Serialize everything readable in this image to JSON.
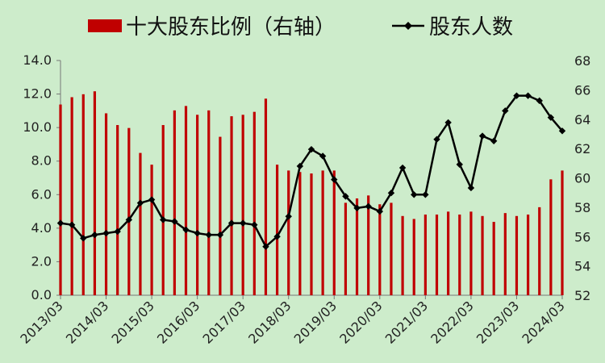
{
  "chart_data": {
    "type": "bar+line",
    "title": "",
    "legend": {
      "position": "top",
      "items": [
        {
          "label": "十大股东比例（右轴）",
          "marker": "bar",
          "color": "#c00000"
        },
        {
          "label": "股东人数",
          "marker": "line-diamond",
          "color": "#000000"
        }
      ]
    },
    "x_tick_labels": [
      "2013/03",
      "2014/03",
      "2015/03",
      "2016/03",
      "2017/03",
      "2018/03",
      "2019/03",
      "2020/03",
      "2021/03",
      "2022/03",
      "2023/03",
      "2024/03"
    ],
    "left_axis": {
      "ylim": [
        0,
        14
      ],
      "ticks": [
        "0.0",
        "2.0",
        "4.0",
        "6.0",
        "8.0",
        "10.0",
        "12.0",
        "14.0"
      ]
    },
    "right_axis": {
      "ylim": [
        52,
        68
      ],
      "ticks": [
        "52",
        "54",
        "56",
        "58",
        "60",
        "62",
        "64",
        "66",
        "68"
      ]
    },
    "quarters": [
      "2013Q1",
      "2013Q2",
      "2013Q3",
      "2013Q4",
      "2014Q1",
      "2014Q2",
      "2014Q3",
      "2014Q4",
      "2015Q1",
      "2015Q2",
      "2015Q3",
      "2015Q4",
      "2016Q1",
      "2016Q2",
      "2016Q3",
      "2016Q4",
      "2017Q1",
      "2017Q2",
      "2017Q3",
      "2017Q4",
      "2018Q1",
      "2018Q2",
      "2018Q3",
      "2018Q4",
      "2019Q1",
      "2019Q2",
      "2019Q3",
      "2019Q4",
      "2020Q1",
      "2020Q2",
      "2020Q3",
      "2020Q4",
      "2021Q1",
      "2021Q2",
      "2021Q3",
      "2021Q4",
      "2022Q1",
      "2022Q2",
      "2022Q3",
      "2022Q4",
      "2023Q1",
      "2023Q2",
      "2023Q3",
      "2023Q4",
      "2024Q1"
    ],
    "series": [
      {
        "name": "十大股东比例（右轴）",
        "type": "bar",
        "axis": "right",
        "color": "#c00000",
        "values": [
          65.0,
          65.5,
          65.7,
          65.9,
          64.4,
          63.6,
          63.4,
          61.7,
          60.9,
          63.6,
          64.6,
          64.9,
          64.3,
          64.6,
          62.8,
          64.2,
          64.3,
          64.5,
          65.4,
          60.9,
          60.5,
          60.4,
          60.3,
          60.5,
          60.5,
          58.3,
          58.6,
          58.8,
          58.2,
          58.3,
          57.4,
          57.2,
          57.5,
          57.5,
          57.7,
          57.5,
          57.7,
          57.4,
          57.0,
          57.6,
          57.4,
          57.5,
          58.0,
          59.9,
          60.5
        ]
      },
      {
        "name": "股东人数",
        "type": "line",
        "axis": "left",
        "color": "#000000",
        "marker": "diamond",
        "values": [
          4.3,
          4.2,
          3.4,
          3.6,
          3.7,
          3.8,
          4.5,
          5.5,
          5.7,
          4.5,
          4.4,
          3.9,
          3.7,
          3.6,
          3.6,
          4.3,
          4.3,
          4.2,
          2.9,
          3.5,
          4.7,
          7.7,
          8.7,
          8.3,
          6.9,
          5.9,
          5.2,
          5.3,
          5.0,
          6.1,
          7.6,
          6.0,
          6.0,
          9.3,
          10.3,
          7.8,
          6.4,
          9.5,
          9.2,
          11.0,
          11.9,
          11.9,
          11.6,
          10.6,
          9.8
        ]
      }
    ]
  }
}
